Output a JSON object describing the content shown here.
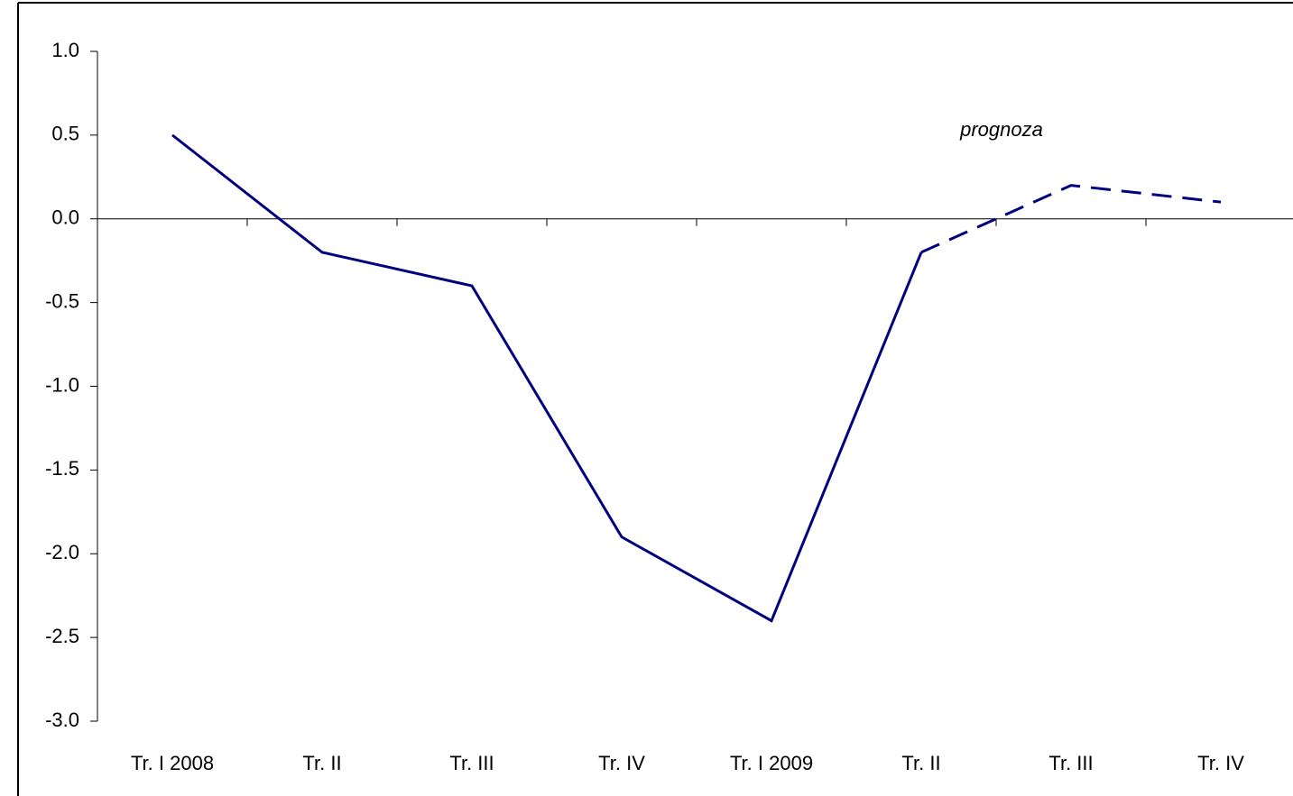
{
  "chart_data": {
    "type": "line",
    "categories": [
      "Tr. I 2008",
      "Tr. II",
      "Tr. III",
      "Tr. IV",
      "Tr. I 2009",
      "Tr. II",
      "Tr. III",
      "Tr. IV"
    ],
    "series": [
      {
        "color": "#000080",
        "line_style": "solid",
        "values": [
          0.5,
          -0.2,
          -0.4,
          -1.9,
          -2.4,
          -0.2,
          null,
          null
        ]
      },
      {
        "color": "#000080",
        "line_style": "dashed",
        "values": [
          null,
          null,
          null,
          null,
          null,
          -0.2,
          0.2,
          0.1
        ]
      }
    ],
    "ylim": [
      -3.0,
      1.0
    ],
    "yticks": [
      {
        "value": 1.0,
        "label": "1.0"
      },
      {
        "value": 0.5,
        "label": "0.5"
      },
      {
        "value": 0.0,
        "label": "0.0"
      },
      {
        "value": -0.5,
        "label": "-0.5"
      },
      {
        "value": -1.0,
        "label": "-1.0"
      },
      {
        "value": -1.5,
        "label": "-1.5"
      },
      {
        "value": -2.0,
        "label": "-2.0"
      },
      {
        "value": -2.5,
        "label": "-2.5"
      },
      {
        "value": -3.0,
        "label": "-3.0"
      }
    ],
    "annotation": "prognoza",
    "grid": false
  }
}
